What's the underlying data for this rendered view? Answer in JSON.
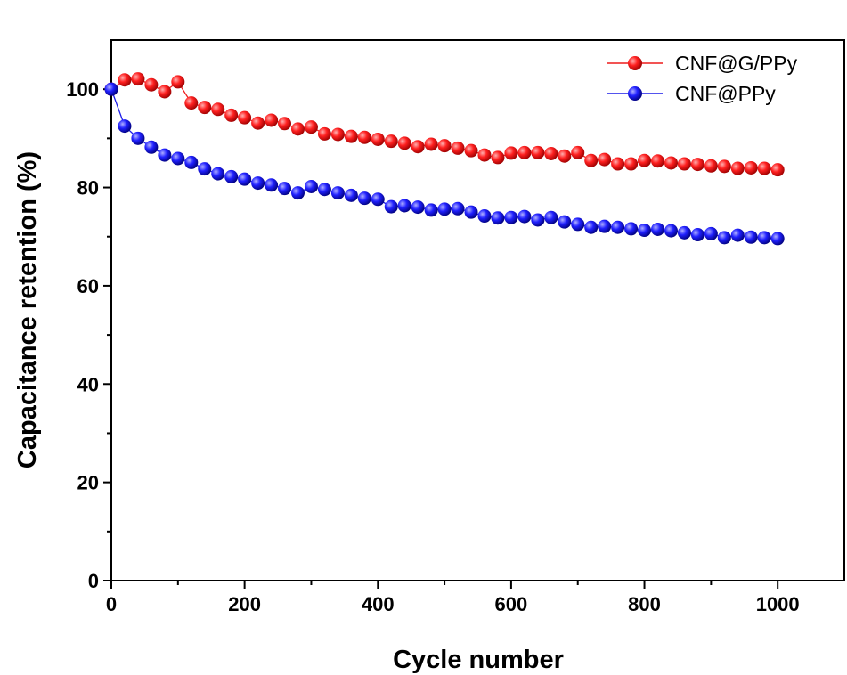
{
  "chart_data": {
    "type": "line",
    "xlabel": "Cycle number",
    "ylabel": "Capacitance retention (%)",
    "xlim": [
      0,
      1100
    ],
    "ylim": [
      0,
      110
    ],
    "xticks": [
      0,
      200,
      400,
      600,
      800,
      1000
    ],
    "yticks": [
      0,
      20,
      40,
      60,
      80,
      100
    ],
    "grid": false,
    "legend_position": "top-right",
    "x": [
      0,
      20,
      40,
      60,
      80,
      100,
      120,
      140,
      160,
      180,
      200,
      220,
      240,
      260,
      280,
      300,
      320,
      340,
      360,
      380,
      400,
      420,
      440,
      460,
      480,
      500,
      520,
      540,
      560,
      580,
      600,
      620,
      640,
      660,
      680,
      700,
      720,
      740,
      760,
      780,
      800,
      820,
      840,
      860,
      880,
      900,
      920,
      940,
      960,
      980,
      1000
    ],
    "series": [
      {
        "name": "CNF@G/PPy",
        "color": "#ee1c1c",
        "values": [
          100,
          101.9,
          102.1,
          100.9,
          99.5,
          101.5,
          97.2,
          96.3,
          95.9,
          94.7,
          94.2,
          93.1,
          93.7,
          93.0,
          91.9,
          92.3,
          90.9,
          90.8,
          90.4,
          90.2,
          89.8,
          89.4,
          89.0,
          88.3,
          88.8,
          88.5,
          88.0,
          87.5,
          86.6,
          86.1,
          87.0,
          87.1,
          87.1,
          86.9,
          86.4,
          87.1,
          85.5,
          85.7,
          84.8,
          84.8,
          85.5,
          85.4,
          85.0,
          84.8,
          84.7,
          84.4,
          84.3,
          83.9,
          84.0,
          83.9,
          83.6
        ]
      },
      {
        "name": "CNF@PPy",
        "color": "#1c1ce8",
        "values": [
          100,
          92.5,
          90.0,
          88.2,
          86.6,
          85.9,
          85.1,
          83.8,
          82.8,
          82.2,
          81.7,
          80.9,
          80.5,
          79.8,
          78.9,
          80.2,
          79.6,
          78.9,
          78.4,
          77.8,
          77.6,
          76.1,
          76.3,
          76.0,
          75.4,
          75.6,
          75.7,
          75.0,
          74.2,
          73.8,
          73.9,
          74.1,
          73.4,
          73.9,
          73.0,
          72.5,
          71.9,
          72.1,
          71.9,
          71.6,
          71.3,
          71.5,
          71.2,
          70.8,
          70.4,
          70.6,
          69.8,
          70.3,
          69.9,
          69.8,
          69.6
        ]
      }
    ]
  }
}
